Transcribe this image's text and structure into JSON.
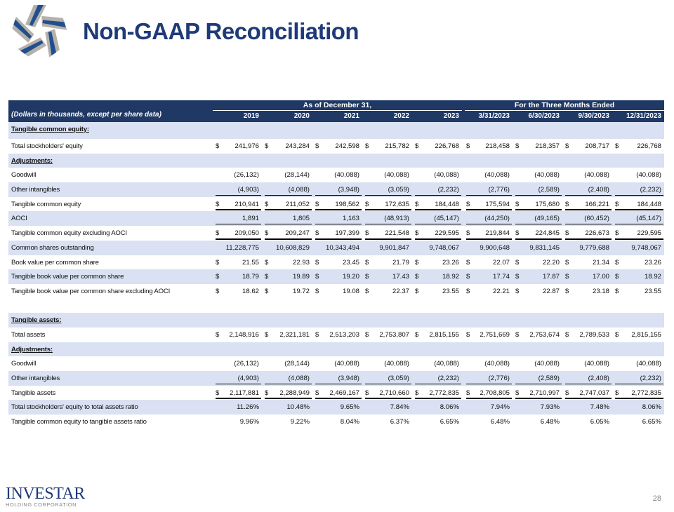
{
  "slide": {
    "title": "Non-GAAP Reconciliation",
    "page_number": "28",
    "footer_logo": {
      "name": "INVESTAR",
      "subtitle": "HOLDING CORPORATION"
    },
    "colors": {
      "navy": "#1f3864",
      "title_blue": "#1f3a78",
      "row_shade": "#d9e1f2"
    }
  },
  "table": {
    "subtitle": "(Dollars in thousands, except per share data)",
    "groups": [
      "As of December 31,",
      "For the Three Months Ended"
    ],
    "columns": [
      "2019",
      "2020",
      "2021",
      "2022",
      "2023",
      "3/31/2023",
      "6/30/2023",
      "9/30/2023",
      "12/31/2023"
    ],
    "rows": [
      {
        "type": "section",
        "label": "Tangible common equity:"
      },
      {
        "type": "data",
        "label": "Total stockholders' equity",
        "currency": "$",
        "values": [
          "241,976",
          "243,284",
          "242,598",
          "215,782",
          "226,768",
          "218,458",
          "218,357",
          "208,717",
          "226,768"
        ]
      },
      {
        "type": "section",
        "label": "Adjustments:"
      },
      {
        "type": "data",
        "label": "Goodwill",
        "currency": "",
        "values": [
          "(26,132)",
          "(28,144)",
          "(40,088)",
          "(40,088)",
          "(40,088)",
          "(40,088)",
          "(40,088)",
          "(40,088)",
          "(40,088)"
        ]
      },
      {
        "type": "data",
        "label": "Other intangibles",
        "currency": "",
        "rule": "single",
        "values": [
          "(4,903)",
          "(4,088)",
          "(3,948)",
          "(3,059)",
          "(2,232)",
          "(2,776)",
          "(2,589)",
          "(2,408)",
          "(2,232)"
        ]
      },
      {
        "type": "data",
        "label": "Tangible common equity",
        "currency": "$",
        "rule": "double",
        "values": [
          "210,941",
          "211,052",
          "198,562",
          "172,635",
          "184,448",
          "175,594",
          "175,680",
          "166,221",
          "184,448"
        ]
      },
      {
        "type": "data",
        "label": "AOCI",
        "currency": "",
        "rule": "single",
        "values": [
          "1,891",
          "1,805",
          "1,163",
          "(48,913)",
          "(45,147)",
          "(44,250)",
          "(49,165)",
          "(60,452)",
          "(45,147)"
        ]
      },
      {
        "type": "data",
        "label": "Tangible common equity excluding AOCI",
        "currency": "$",
        "rule": "double",
        "values": [
          "209,050",
          "209,247",
          "197,399",
          "221,548",
          "229,595",
          "219,844",
          "224,845",
          "226,673",
          "229,595"
        ]
      },
      {
        "type": "data",
        "label": "Common shares outstanding",
        "currency": "",
        "values": [
          "11,228,775",
          "10,608,829",
          "10,343,494",
          "9,901,847",
          "9,748,067",
          "9,900,648",
          "9,831,145",
          "9,779,688",
          "9,748,067"
        ]
      },
      {
        "type": "data",
        "label": "Book value per common share",
        "currency": "$",
        "values": [
          "21.55",
          "22.93",
          "23.45",
          "21.79",
          "23.26",
          "22.07",
          "22.20",
          "21.34",
          "23.26"
        ]
      },
      {
        "type": "data",
        "label": "Tangible book value per common share",
        "currency": "$",
        "values": [
          "18.79",
          "19.89",
          "19.20",
          "17.43",
          "18.92",
          "17.74",
          "17.87",
          "17.00",
          "18.92"
        ]
      },
      {
        "type": "data",
        "label": "Tangible book value per common share excluding AOCI",
        "currency": "$",
        "values": [
          "18.62",
          "19.72",
          "19.08",
          "22.37",
          "23.55",
          "22.21",
          "22.87",
          "23.18",
          "23.55"
        ]
      },
      {
        "type": "blank",
        "label": ""
      },
      {
        "type": "section",
        "label": "Tangible assets:"
      },
      {
        "type": "data",
        "label": "Total assets",
        "currency": "$",
        "values": [
          "2,148,916",
          "2,321,181",
          "2,513,203",
          "2,753,807",
          "2,815,155",
          "2,751,669",
          "2,753,674",
          "2,789,533",
          "2,815,155"
        ]
      },
      {
        "type": "section",
        "label": "Adjustments:"
      },
      {
        "type": "data",
        "label": "Goodwill",
        "currency": "",
        "values": [
          "(26,132)",
          "(28,144)",
          "(40,088)",
          "(40,088)",
          "(40,088)",
          "(40,088)",
          "(40,088)",
          "(40,088)",
          "(40,088)"
        ]
      },
      {
        "type": "data",
        "label": "Other intangibles",
        "currency": "",
        "rule": "single",
        "values": [
          "(4,903)",
          "(4,088)",
          "(3,948)",
          "(3,059)",
          "(2,232)",
          "(2,776)",
          "(2,589)",
          "(2,408)",
          "(2,232)"
        ]
      },
      {
        "type": "data",
        "label": "Tangible assets",
        "currency": "$",
        "rule": "double",
        "values": [
          "2,117,881",
          "2,288,949",
          "2,469,167",
          "2,710,660",
          "2,772,835",
          "2,708,805",
          "2,710,997",
          "2,747,037",
          "2,772,835"
        ]
      },
      {
        "type": "data",
        "label": "Total stockholders' equity to total assets ratio",
        "currency": "",
        "values": [
          "11.26%",
          "10.48%",
          "9.65%",
          "7.84%",
          "8.06%",
          "7.94%",
          "7.93%",
          "7.48%",
          "8.06%"
        ]
      },
      {
        "type": "data",
        "label": "Tangible common equity to tangible assets ratio",
        "currency": "",
        "values": [
          "9.96%",
          "9.22%",
          "8.04%",
          "6.37%",
          "6.65%",
          "6.48%",
          "6.48%",
          "6.05%",
          "6.65%"
        ]
      }
    ]
  }
}
